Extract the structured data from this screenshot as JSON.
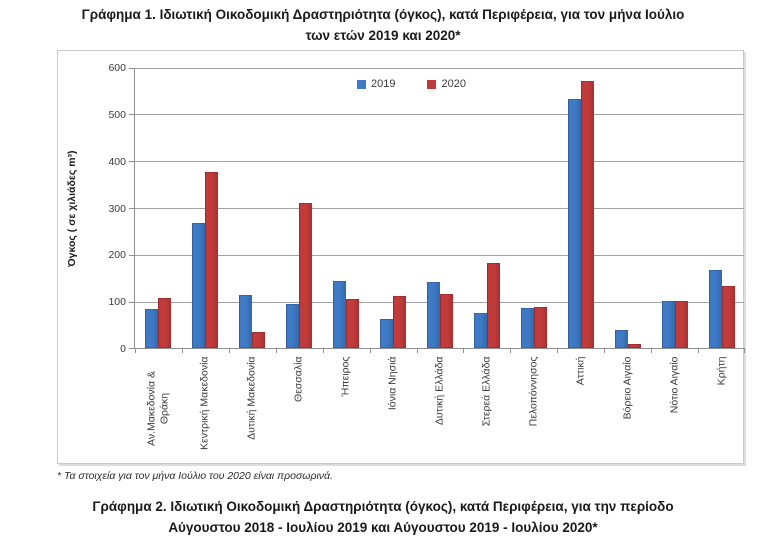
{
  "page": {
    "title1_line1": "Γράφημα 1. Ιδιωτική Οικοδομική Δραστηριότητα (όγκος), κατά Περιφέρεια, για τον μήνα  Ιούλιο",
    "title1_line2": "των ετών 2019 και 2020*",
    "footnote": "* Τα στοιχεία για τον μήνα Ιούλιο του 2020 είναι προσωρινά.",
    "title2_line1": "Γράφημα 2. Ιδιωτική Οικοδομική Δραστηριότητα (όγκος), κατά Περιφέρεια, για την περίοδο",
    "title2_line2": "Αύγουστου 2018 - Ιουλίου 2019 και Αύγουστου 2019 - Ιουλίου 2020*"
  },
  "chart_data": {
    "type": "bar",
    "title": "Γράφημα 1. Ιδιωτική Οικοδομική Δραστηριότητα (όγκος), κατά Περιφέρεια, για τον μήνα Ιούλιο των ετών 2019 και 2020*",
    "xlabel": "",
    "ylabel": "Όγκος ( σε χιλιάδες  m³)",
    "ylim": [
      0,
      600
    ],
    "yticks": [
      0,
      100,
      200,
      300,
      400,
      500,
      600
    ],
    "grid": true,
    "legend_position": "top-center-inside",
    "categories": [
      "Αν.Μακεδονία & Θράκη",
      "Κεντρική Μακεδονία",
      "Δυτική Μακεδονία",
      "Θεσσαλία",
      "Ήπειρος",
      "Ιόνια Νησιά",
      "Δυτική Ελλάδα",
      "Στερεά Ελλάδα",
      "Πελοπόννησος",
      "Αττική",
      "Βόρειο Αιγαίο",
      "Νότιο Αιγαίο",
      "Κρήτη"
    ],
    "series": [
      {
        "name": "2019",
        "color": "#3e7ac5",
        "values": [
          84,
          268,
          113,
          94,
          143,
          63,
          140,
          75,
          85,
          532,
          39,
          100,
          166
        ]
      },
      {
        "name": "2020",
        "color": "#c23b3b",
        "values": [
          107,
          375,
          34,
          310,
          105,
          112,
          116,
          182,
          87,
          570,
          9,
          100,
          132
        ]
      }
    ]
  }
}
